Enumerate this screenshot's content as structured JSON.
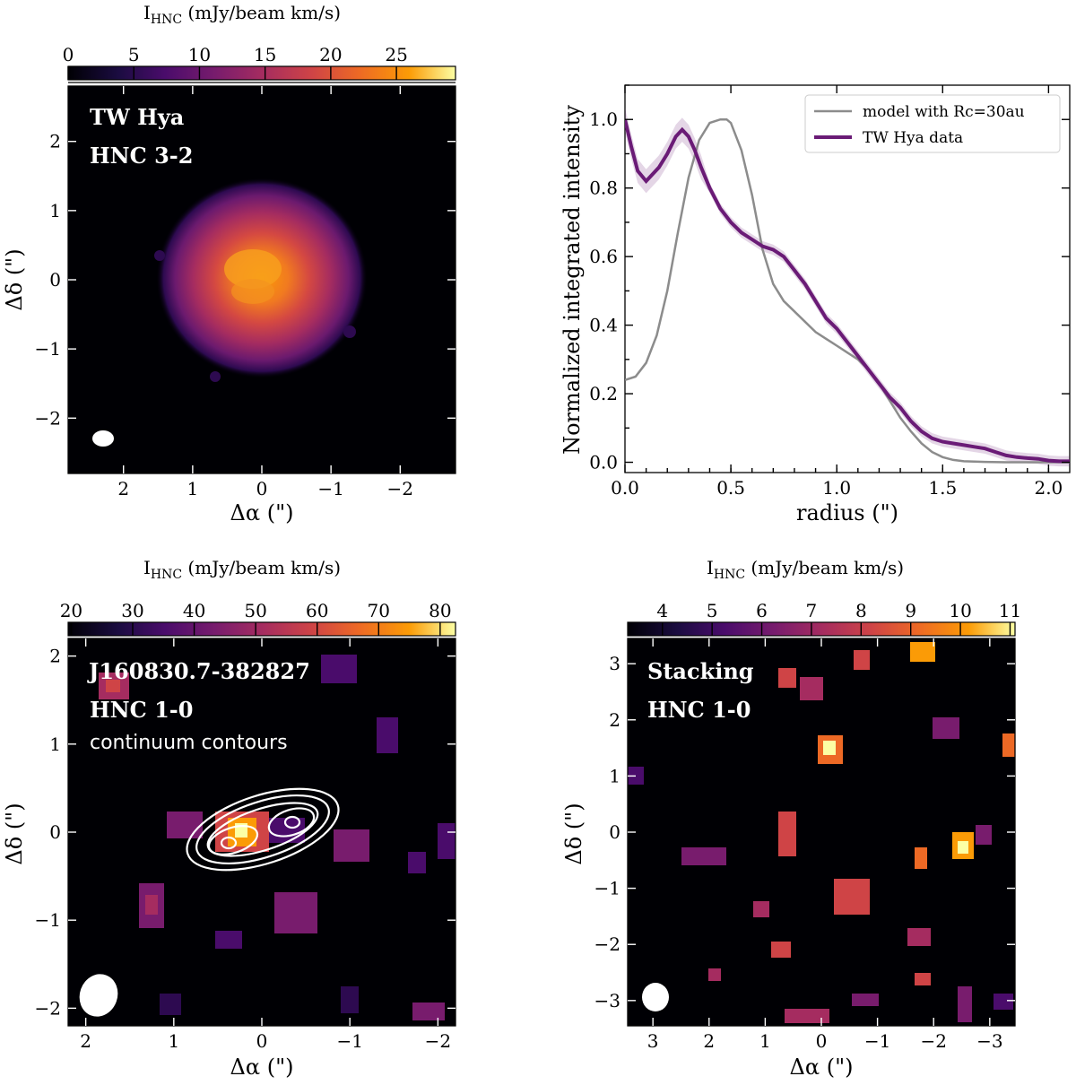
{
  "chart_data": [
    {
      "type": "heatmap",
      "panel": "top-left",
      "colorbar_label": "I",
      "colorbar_label_sub": "HNC",
      "colorbar_label_rest": " (mJy/beam km/s)",
      "colorbar_ticks": [
        "0",
        "5",
        "10",
        "15",
        "20",
        "25"
      ],
      "colorbar_range": [
        0,
        29.5
      ],
      "xlabel": "Δα (\")",
      "ylabel": "Δδ (\")",
      "xlim": [
        2.8,
        -2.8
      ],
      "ylim": [
        -2.8,
        2.8
      ],
      "xticks": [
        "2",
        "1",
        "0",
        "−1",
        "−2"
      ],
      "yticks": [
        "2",
        "1",
        "0",
        "−1",
        "−2"
      ],
      "annotations": [
        "TW Hya",
        "HNC 3-2"
      ]
    },
    {
      "type": "line",
      "panel": "top-right",
      "xlabel": "radius (\")",
      "ylabel": "Normalized integrated intensity",
      "xlim": [
        0.0,
        2.1
      ],
      "ylim": [
        -0.03,
        1.1
      ],
      "xticks": [
        "0.0",
        "0.5",
        "1.0",
        "1.5",
        "2.0"
      ],
      "yticks": [
        "0.0",
        "0.2",
        "0.4",
        "0.6",
        "0.8",
        "1.0"
      ],
      "legend_position": "upper right",
      "series": [
        {
          "name": "model with Rc=30au",
          "color": "#8c8c8c",
          "x": [
            0.0,
            0.05,
            0.1,
            0.15,
            0.2,
            0.25,
            0.3,
            0.35,
            0.4,
            0.45,
            0.48,
            0.5,
            0.55,
            0.6,
            0.65,
            0.7,
            0.75,
            0.8,
            0.85,
            0.9,
            0.95,
            1.0,
            1.05,
            1.1,
            1.15,
            1.2,
            1.25,
            1.3,
            1.35,
            1.4,
            1.45,
            1.5,
            1.55,
            1.6,
            1.7,
            1.8,
            1.9,
            2.0,
            2.1
          ],
          "y": [
            0.24,
            0.25,
            0.29,
            0.37,
            0.5,
            0.67,
            0.83,
            0.94,
            0.99,
            1.0,
            1.0,
            0.99,
            0.91,
            0.78,
            0.62,
            0.52,
            0.47,
            0.44,
            0.41,
            0.38,
            0.36,
            0.34,
            0.32,
            0.3,
            0.27,
            0.23,
            0.18,
            0.13,
            0.09,
            0.055,
            0.03,
            0.015,
            0.007,
            0.003,
            0.001,
            0.0,
            0.0,
            0.0,
            0.0
          ]
        },
        {
          "name": "TW Hya data",
          "color": "#6a1b76",
          "x": [
            0.0,
            0.03,
            0.06,
            0.1,
            0.13,
            0.16,
            0.2,
            0.24,
            0.27,
            0.3,
            0.33,
            0.36,
            0.4,
            0.45,
            0.5,
            0.55,
            0.6,
            0.65,
            0.7,
            0.75,
            0.8,
            0.85,
            0.9,
            0.95,
            1.0,
            1.05,
            1.1,
            1.15,
            1.2,
            1.25,
            1.3,
            1.35,
            1.4,
            1.45,
            1.5,
            1.55,
            1.6,
            1.65,
            1.7,
            1.75,
            1.8,
            1.85,
            1.9,
            1.95,
            2.0,
            2.05,
            2.1
          ],
          "y": [
            1.0,
            0.92,
            0.85,
            0.82,
            0.84,
            0.86,
            0.9,
            0.95,
            0.97,
            0.95,
            0.91,
            0.86,
            0.8,
            0.74,
            0.7,
            0.67,
            0.65,
            0.63,
            0.62,
            0.6,
            0.56,
            0.52,
            0.47,
            0.42,
            0.39,
            0.35,
            0.31,
            0.27,
            0.23,
            0.19,
            0.16,
            0.12,
            0.09,
            0.07,
            0.06,
            0.055,
            0.05,
            0.045,
            0.04,
            0.03,
            0.02,
            0.015,
            0.012,
            0.01,
            0.005,
            0.003,
            0.003
          ]
        }
      ]
    },
    {
      "type": "heatmap",
      "panel": "bottom-left",
      "colorbar_label": "I",
      "colorbar_label_sub": "HNC",
      "colorbar_label_rest": " (mJy/beam km/s)",
      "colorbar_ticks": [
        "20",
        "30",
        "40",
        "50",
        "60",
        "70",
        "80"
      ],
      "colorbar_range": [
        19.5,
        82.5
      ],
      "xlabel": "Δα (\")",
      "ylabel": "Δδ (\")",
      "xlim": [
        2.2,
        -2.2
      ],
      "ylim": [
        -2.2,
        2.2
      ],
      "xticks": [
        "2",
        "1",
        "0",
        "−1",
        "−2"
      ],
      "yticks": [
        "2",
        "1",
        "0",
        "−1",
        "−2"
      ],
      "annotations": [
        "J160830.7-382827",
        "HNC 1-0"
      ],
      "annotation_note": "continuum contours"
    },
    {
      "type": "heatmap",
      "panel": "bottom-right",
      "colorbar_label": "I",
      "colorbar_label_sub": "HNC",
      "colorbar_label_rest": " (mJy/beam km/s)",
      "colorbar_ticks": [
        "4",
        "5",
        "6",
        "7",
        "8",
        "9",
        "10",
        "11"
      ],
      "colorbar_range": [
        3.3,
        11.1
      ],
      "xlabel": "Δα (\")",
      "ylabel": "Δδ (\")",
      "xlim": [
        3.45,
        -3.45
      ],
      "ylim": [
        -3.45,
        3.45
      ],
      "xticks": [
        "3",
        "2",
        "1",
        "0",
        "−1",
        "−2",
        "−3"
      ],
      "yticks": [
        "3",
        "2",
        "1",
        "0",
        "−1",
        "−2",
        "−3"
      ],
      "annotations": [
        "Stacking",
        "HNC 1-0"
      ]
    }
  ]
}
